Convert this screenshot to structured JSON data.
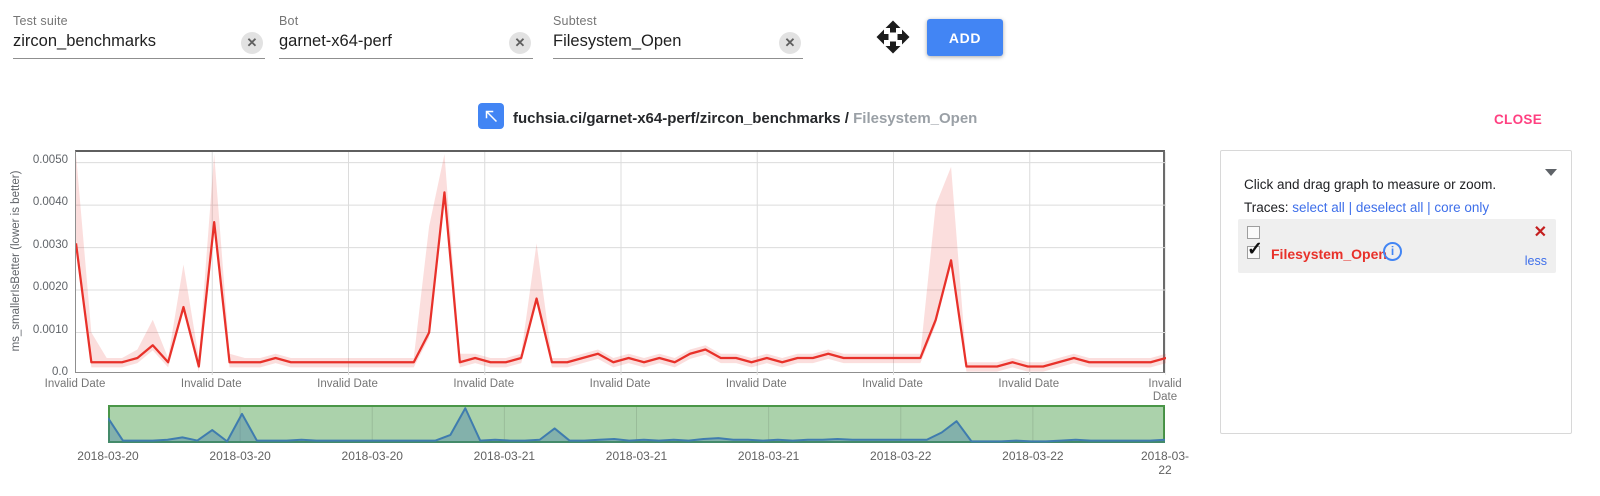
{
  "form": {
    "fields": [
      {
        "label": "Test suite",
        "value": "zircon_benchmarks"
      },
      {
        "label": "Bot",
        "value": "garnet-x64-perf"
      },
      {
        "label": "Subtest",
        "value": "Filesystem_Open"
      }
    ],
    "add_button_label": "ADD"
  },
  "header": {
    "title_path": "fuchsia.ci/garnet-x64-perf/zircon_benchmarks / ",
    "title_subtest": "Filesystem_Open",
    "close_label": "CLOSE"
  },
  "side_panel": {
    "hint": "Click and drag graph to measure or zoom.",
    "traces_label": "Traces:",
    "trace_links": [
      "select all",
      "deselect all",
      "core only"
    ],
    "trace_item": {
      "name": "Filesystem_Open",
      "checked": "true",
      "less_label": "less"
    }
  },
  "colors": {
    "accent_blue": "#4285f4",
    "close_pink": "#ff4081",
    "trace_red": "#e8312a",
    "band_pink": "rgba(232,49,42,0.16)",
    "link_blue": "#3e6fea",
    "grid_gray": "#dcdcdc",
    "minimap_green_fill": "rgba(94,168,94,0.52)",
    "minimap_green_border": "#4a9648",
    "minimap_line_blue": "#3f7cae",
    "minimap_area_blue": "rgba(57,118,171,0.35)"
  },
  "chart_data": {
    "type": "line",
    "title": "fuchsia.ci/garnet-x64-perf/zircon_benchmarks / Filesystem_Open",
    "ylabel": "ms_smallerIsBetter (lower is better)",
    "ylim": [
      0,
      0.00525
    ],
    "ytick_values": [
      0,
      0.001,
      0.002,
      0.003,
      0.004,
      0.005
    ],
    "ytick_labels": [
      "0.0",
      "0.0010",
      "0.0020",
      "0.0030",
      "0.0040",
      "0.0050"
    ],
    "xtick_labels": [
      "Invalid Date",
      "Invalid Date",
      "Invalid Date",
      "Invalid Date",
      "Invalid Date",
      "Invalid Date",
      "Invalid Date",
      "Invalid Date",
      "Invalid Date"
    ],
    "grid": "on",
    "series": [
      {
        "name": "Filesystem_Open",
        "color": "#e8312a",
        "values": [
          0.0031,
          0.0003,
          0.0003,
          0.0003,
          0.0004,
          0.0007,
          0.0003,
          0.0016,
          0.0002,
          0.0036,
          0.0003,
          0.0003,
          0.0003,
          0.0004,
          0.0003,
          0.0003,
          0.0003,
          0.0003,
          0.0003,
          0.0003,
          0.0003,
          0.0003,
          0.0003,
          0.001,
          0.0043,
          0.0003,
          0.0004,
          0.0003,
          0.0003,
          0.0004,
          0.0018,
          0.0003,
          0.0003,
          0.0004,
          0.0005,
          0.0003,
          0.0004,
          0.0003,
          0.0004,
          0.0003,
          0.0005,
          0.0006,
          0.0004,
          0.0004,
          0.0003,
          0.0004,
          0.0003,
          0.0004,
          0.0004,
          0.0005,
          0.0004,
          0.0004,
          0.0004,
          0.0004,
          0.0004,
          0.0004,
          0.0013,
          0.0027,
          0.0002,
          0.0002,
          0.0002,
          0.0003,
          0.0002,
          0.0002,
          0.0003,
          0.0004,
          0.0003,
          0.0003,
          0.0003,
          0.0003,
          0.0003,
          0.0004
        ],
        "band_upper": [
          0.0052,
          0.001,
          0.0004,
          0.0004,
          0.0006,
          0.0013,
          0.0004,
          0.0026,
          0.0004,
          0.0052,
          0.0005,
          0.0004,
          0.0004,
          0.0005,
          0.0004,
          0.0004,
          0.0004,
          0.0004,
          0.0004,
          0.0004,
          0.0004,
          0.0004,
          0.0004,
          0.0035,
          0.0052,
          0.0005,
          0.0005,
          0.0004,
          0.0004,
          0.0005,
          0.0031,
          0.0004,
          0.0004,
          0.0005,
          0.0006,
          0.0004,
          0.0005,
          0.0004,
          0.0005,
          0.0004,
          0.0006,
          0.0007,
          0.0005,
          0.0005,
          0.0004,
          0.0005,
          0.0004,
          0.0005,
          0.0005,
          0.0006,
          0.0005,
          0.0005,
          0.0005,
          0.0005,
          0.0005,
          0.0005,
          0.004,
          0.0049,
          0.0003,
          0.0003,
          0.0003,
          0.0004,
          0.0003,
          0.0003,
          0.0004,
          0.0005,
          0.0004,
          0.0004,
          0.0004,
          0.0004,
          0.0004,
          0.0005
        ]
      }
    ],
    "minimap": {
      "type": "line",
      "note": "range selector showing same series",
      "dates": [
        "2018-03-20",
        "2018-03-20",
        "2018-03-20",
        "2018-03-21",
        "2018-03-21",
        "2018-03-21",
        "2018-03-22",
        "2018-03-22",
        "2018-03-22"
      ]
    }
  }
}
